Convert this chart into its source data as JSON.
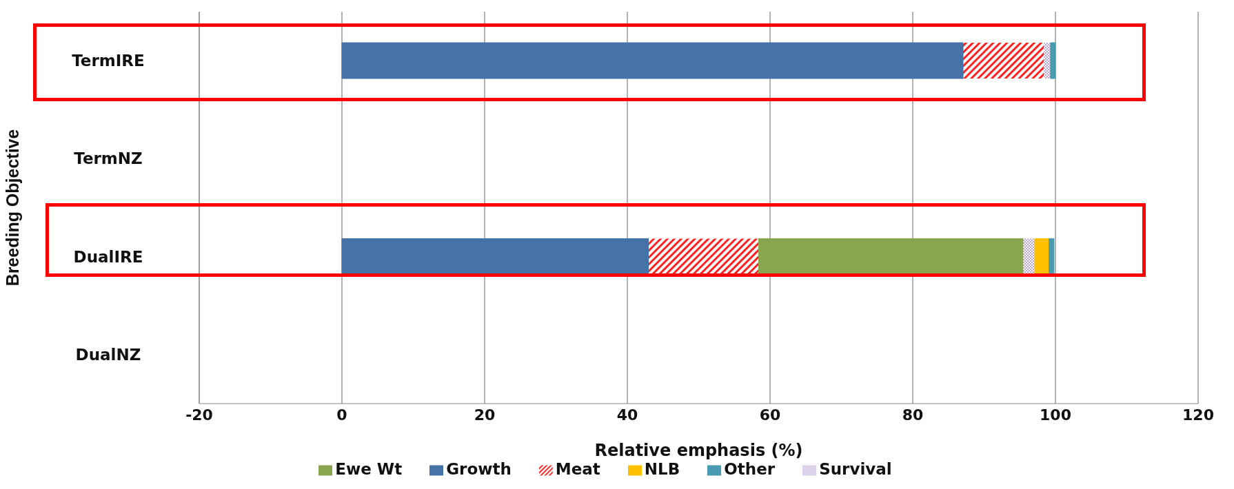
{
  "chart_data": {
    "type": "bar",
    "orientation": "horizontal",
    "stacked": true,
    "categories": [
      "TermIRE",
      "TermNZ",
      "DualIRE",
      "DualNZ"
    ],
    "series": [
      {
        "name": "Growth",
        "color": "#4572a7",
        "values": [
          87.1,
          null,
          43.0,
          null
        ]
      },
      {
        "name": "Meat",
        "color": "#ff2020",
        "values": [
          11.3,
          null,
          15.4,
          null
        ]
      },
      {
        "name": "Ewe Wt",
        "color": "#89a54e",
        "values": [
          null,
          null,
          37.1,
          null
        ]
      },
      {
        "name": "Survival",
        "color": "#b8a4d8",
        "values": [
          0.9,
          null,
          1.6,
          null
        ]
      },
      {
        "name": "NLB",
        "color": "#ffc000",
        "values": [
          null,
          null,
          2.0,
          null
        ]
      },
      {
        "name": "Other",
        "color": "#4a9bb0",
        "values": [
          0.7,
          null,
          0.7,
          null
        ]
      }
    ],
    "xlim": [
      -20,
      120
    ],
    "xticks": [
      -20,
      0,
      20,
      40,
      60,
      80,
      100,
      120
    ],
    "xlabel": "Relative emphasis (%)",
    "ylabel": "Breeding Objective",
    "grid": "x",
    "legend": "bottom"
  }
}
